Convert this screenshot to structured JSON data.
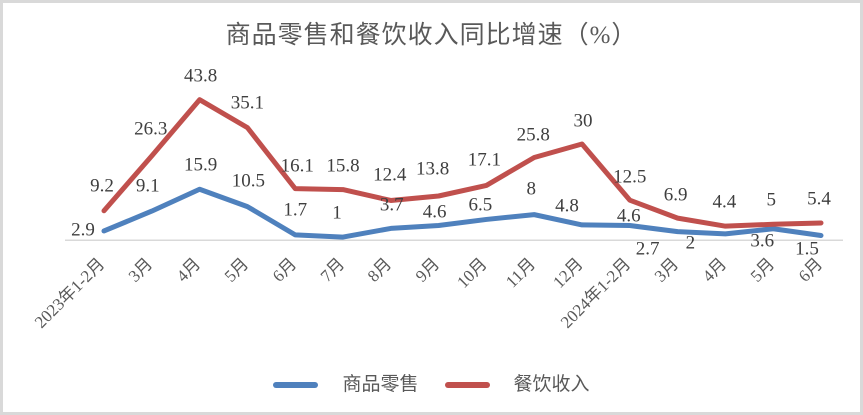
{
  "title": "商品零售和餐饮收入同比增速（%）",
  "colors": {
    "retail_series": "#4F81BD",
    "catering_series": "#C0504D",
    "axis_line": "#D9D9D9",
    "frame_border": "#D9D9D9",
    "title_text": "#595959",
    "data_label_text": "#3F3F3F",
    "axis_label_text": "#595959"
  },
  "legend": {
    "position": "bottom",
    "items": [
      {
        "label": "商品零售",
        "color": "#4F81BD"
      },
      {
        "label": "餐饮收入",
        "color": "#C0504D"
      }
    ]
  },
  "chart_data": {
    "type": "line",
    "title": "商品零售和餐饮收入同比增速（%）",
    "categories": [
      "2023年1-2月",
      "3月",
      "4月",
      "5月",
      "6月",
      "7月",
      "8月",
      "9月",
      "10月",
      "11月",
      "12月",
      "2024年1-2月",
      "3月",
      "4月",
      "5月",
      "6月"
    ],
    "series": [
      {
        "name": "商品零售",
        "color": "#4F81BD",
        "values": [
          2.9,
          9.1,
          15.9,
          10.5,
          1.7,
          1,
          3.7,
          4.6,
          6.5,
          8,
          4.8,
          4.6,
          2.7,
          2,
          3.6,
          1.5
        ],
        "label_offsets": [
          [
            -21,
            -1
          ],
          [
            -4,
            -25
          ],
          [
            1,
            -24
          ],
          [
            1,
            -26
          ],
          [
            0,
            -25
          ],
          [
            -6,
            -24
          ],
          [
            1,
            -23
          ],
          [
            -4,
            -14
          ],
          [
            -6,
            -14
          ],
          [
            -3,
            -26
          ],
          [
            -15,
            -19
          ],
          [
            -1,
            -10
          ],
          [
            -30,
            17
          ],
          [
            -35,
            9
          ],
          [
            -11,
            12
          ],
          [
            -14,
            14
          ]
        ]
      },
      {
        "name": "餐饮收入",
        "color": "#C0504D",
        "values": [
          9.2,
          26.3,
          43.8,
          35.1,
          16.1,
          15.8,
          12.4,
          13.8,
          17.1,
          25.8,
          30,
          12.5,
          6.9,
          4.4,
          5,
          5.4
        ],
        "label_offsets": [
          [
            -2,
            -25
          ],
          [
            -1,
            -27
          ],
          [
            1,
            -24
          ],
          [
            0,
            -25
          ],
          [
            2,
            -23
          ],
          [
            0,
            -24
          ],
          [
            -1,
            -25
          ],
          [
            -6,
            -27
          ],
          [
            -2,
            -25
          ],
          [
            -1,
            -22
          ],
          [
            1,
            -23
          ],
          [
            0,
            -23
          ],
          [
            -2,
            -23
          ],
          [
            -1,
            -24
          ],
          [
            -2,
            -24
          ],
          [
            -2,
            -24
          ]
        ]
      }
    ],
    "ylim": [
      0,
      50
    ],
    "grid": false,
    "y_axis_labels_visible": false,
    "x_tick_rotation": -45,
    "data_labels": true,
    "legend_position": "bottom"
  }
}
